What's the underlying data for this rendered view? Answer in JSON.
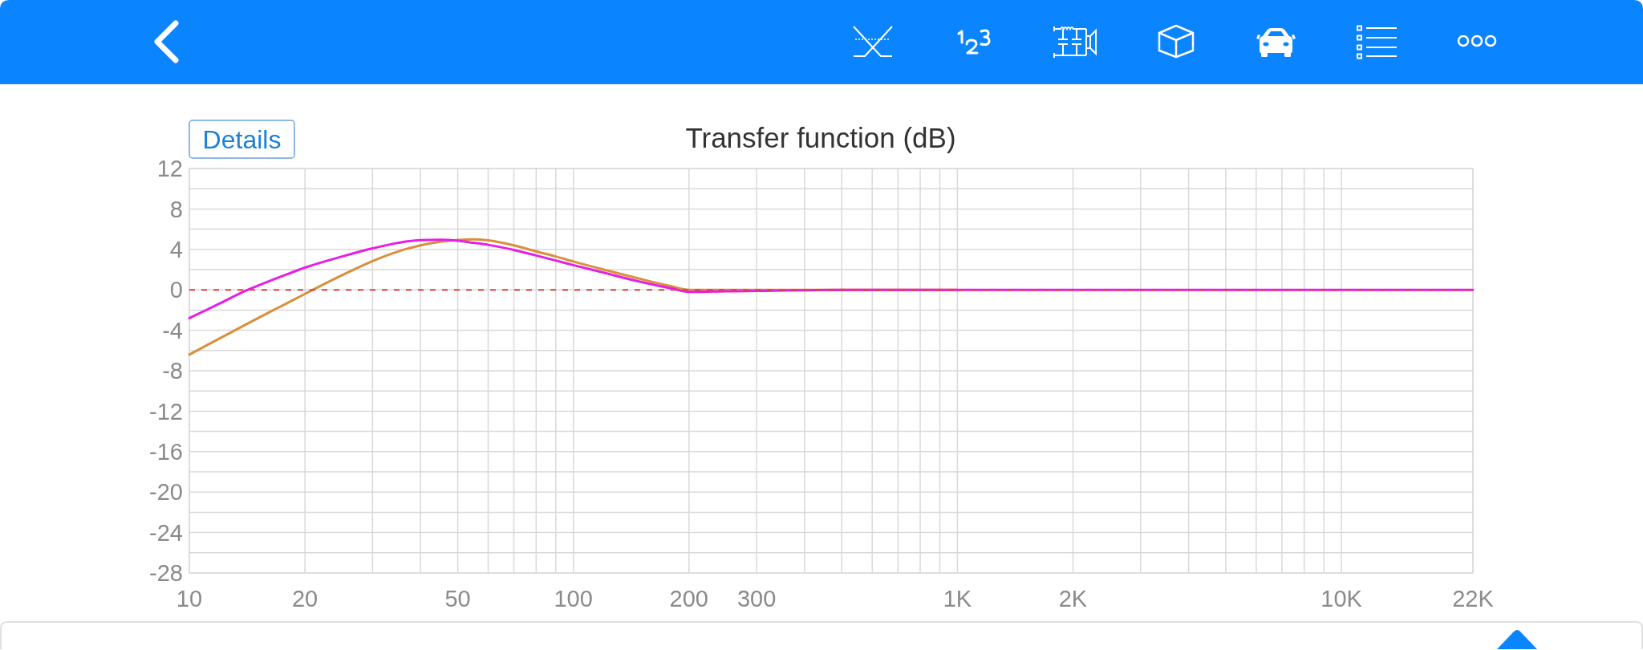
{
  "chart_data": {
    "type": "line",
    "title": "Transfer function (dB)",
    "annotations": [
      "Details"
    ],
    "x": [
      10,
      12,
      14,
      16,
      18,
      20,
      25,
      30,
      35,
      40,
      45,
      50,
      55,
      60,
      70,
      80,
      90,
      100,
      120,
      140,
      160,
      180,
      200,
      250,
      300,
      500,
      1000,
      2000,
      5000,
      10000,
      22000
    ],
    "series": [
      {
        "color": "#d8903c",
        "values": [
          -6.4,
          -4.8,
          -3.45,
          -2.3,
          -1.3,
          -0.4,
          1.45,
          2.85,
          3.8,
          4.4,
          4.75,
          4.93,
          5.0,
          4.9,
          4.4,
          3.8,
          3.3,
          2.8,
          2.0,
          1.35,
          0.8,
          0.35,
          0,
          0,
          0,
          0,
          0,
          null,
          null,
          null,
          null
        ]
      },
      {
        "color": "#e61ee6",
        "values": [
          -2.8,
          -1.35,
          -0.1,
          0.8,
          1.55,
          2.2,
          3.3,
          4.1,
          4.65,
          4.92,
          4.95,
          4.85,
          4.65,
          4.45,
          3.95,
          3.4,
          2.9,
          2.45,
          1.7,
          1.05,
          0.55,
          0.15,
          -0.2,
          -0.15,
          -0.1,
          0,
          0,
          0,
          0,
          0,
          0
        ]
      }
    ],
    "log": "x",
    "xlim": [
      10,
      22000
    ],
    "xticks": [
      10,
      20,
      {
        "value": 30,
        "label": null
      },
      {
        "value": 40,
        "label": null
      },
      50,
      {
        "value": 60,
        "label": null
      },
      {
        "value": 70,
        "label": null
      },
      {
        "value": 80,
        "label": null
      },
      {
        "value": 90,
        "label": null
      },
      100,
      200,
      300,
      {
        "value": 400,
        "label": null
      },
      {
        "value": 500,
        "label": null
      },
      {
        "value": 600,
        "label": null
      },
      {
        "value": 700,
        "label": null
      },
      {
        "value": 800,
        "label": null
      },
      {
        "value": 900,
        "label": null
      },
      {
        "value": 1000,
        "label": "1K"
      },
      {
        "value": 2000,
        "label": "2K"
      },
      {
        "value": 3000,
        "label": null
      },
      {
        "value": 4000,
        "label": null
      },
      {
        "value": 5000,
        "label": null
      },
      {
        "value": 6000,
        "label": null
      },
      {
        "value": 7000,
        "label": null
      },
      {
        "value": 8000,
        "label": null
      },
      {
        "value": 9000,
        "label": null
      },
      {
        "value": 10000,
        "label": "10K"
      },
      {
        "value": 22000,
        "label": "22K"
      }
    ],
    "ylim": [
      -28,
      12
    ],
    "yticks": [
      12,
      {
        "value": 10,
        "label": null
      },
      8,
      {
        "value": 6,
        "label": null
      },
      4,
      {
        "value": 2,
        "label": null
      },
      0,
      {
        "value": -2,
        "label": null
      },
      -4,
      {
        "value": -6,
        "label": null
      },
      -8,
      {
        "value": -10,
        "label": null
      },
      -12,
      {
        "value": -14,
        "label": null
      },
      -16,
      {
        "value": -18,
        "label": null
      },
      -20,
      {
        "value": -22,
        "label": null
      },
      -24,
      {
        "value": -26,
        "label": null
      },
      -28
    ],
    "grid": true,
    "ref_lines": [
      {
        "axis": "y",
        "value": 0,
        "color": "#e0403c",
        "line_style": "dashed"
      }
    ]
  }
}
